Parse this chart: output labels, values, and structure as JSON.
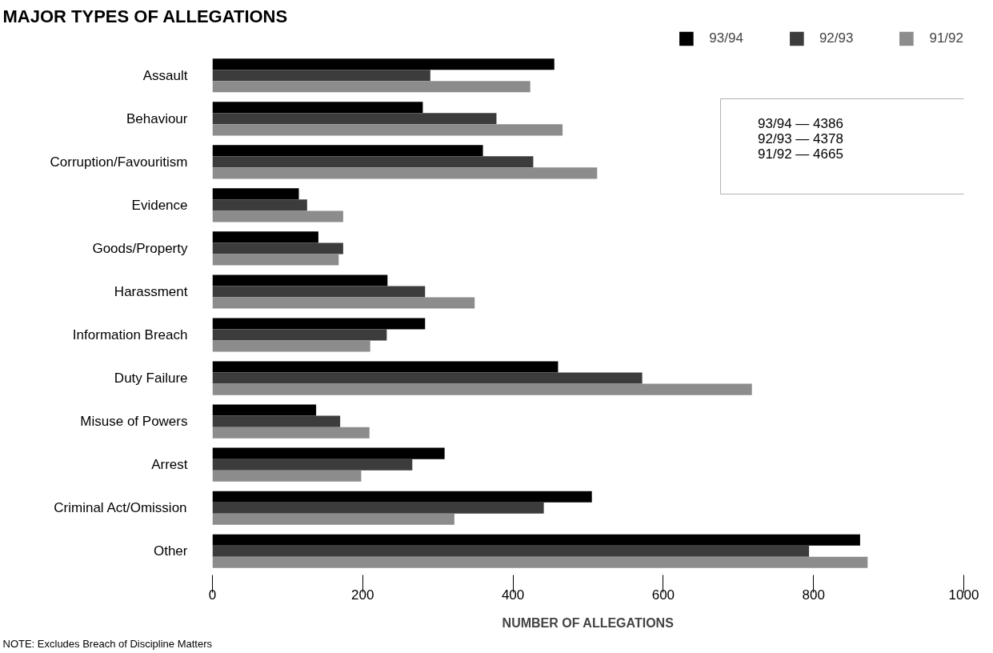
{
  "chart_data": {
    "type": "bar",
    "orientation": "horizontal",
    "title": "MAJOR TYPES OF ALLEGATIONS",
    "xlabel": "NUMBER OF ALLEGATIONS",
    "categories": [
      "Assault",
      "Behaviour",
      "Corruption/Favouritism",
      "Evidence",
      "Goods/Property",
      "Harassment",
      "Information Breach",
      "Duty Failure",
      "Misuse of Powers",
      "Arrest",
      "Criminal Act/Omission",
      "Other"
    ],
    "series": [
      {
        "name": "93/94",
        "color": "#000000",
        "values": [
          455,
          280,
          360,
          115,
          141,
          233,
          283,
          460,
          138,
          309,
          505,
          862
        ]
      },
      {
        "name": "92/93",
        "color": "#3c3c3c",
        "values": [
          290,
          378,
          427,
          126,
          174,
          283,
          232,
          572,
          170,
          266,
          441,
          794
        ]
      },
      {
        "name": "91/92",
        "color": "#8c8c8c",
        "values": [
          423,
          466,
          512,
          174,
          168,
          349,
          210,
          718,
          209,
          198,
          322,
          872
        ]
      }
    ],
    "xlim": [
      0,
      1000
    ],
    "xticks": [
      0,
      200,
      400,
      600,
      800,
      1000
    ],
    "grid": false,
    "legend": "top right",
    "annotations": [
      "93/94 — 4386",
      "92/93 — 4378",
      "91/92 — 4665",
      "NOTE: Excludes Breach of Discipline Matters"
    ]
  }
}
